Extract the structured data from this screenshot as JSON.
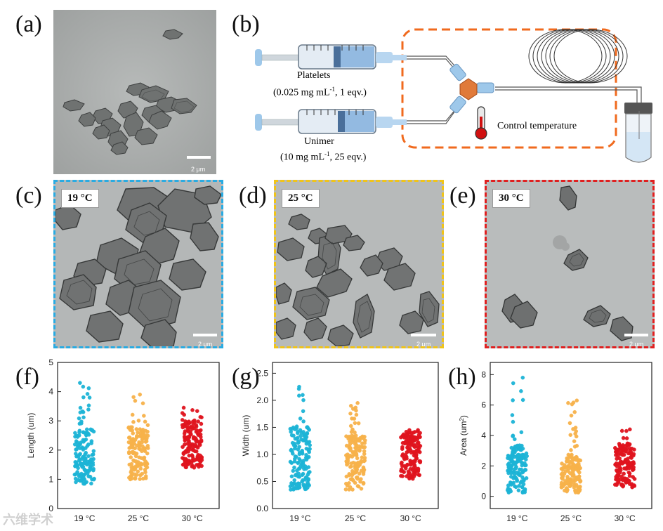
{
  "labels": {
    "a": "(a)",
    "b": "(b)",
    "c": "(c)",
    "d": "(d)",
    "e": "(e)",
    "f": "(f)",
    "g": "(g)",
    "h": "(h)"
  },
  "scale_bars": {
    "a": "2 μm",
    "c": "2 μm",
    "d": "2 μm",
    "e": "2 μm"
  },
  "temperatures": {
    "c": "19 °C",
    "d": "25 °C",
    "e": "30 °C"
  },
  "schematic": {
    "platelets_label": "Platelets",
    "platelets_conc": "(0.025 mg mL",
    "platelets_sup": "-1",
    "platelets_eqv": ", 1 eqv.)",
    "unimer_label": "Unimer",
    "unimer_conc": "(10 mg mL",
    "unimer_sup": "-1",
    "unimer_eqv": ", 25 eqv.)",
    "control_label": "Control temperature"
  },
  "colors": {
    "c_border": "#29abe2",
    "d_border": "#f0c419",
    "e_border": "#e02020",
    "dots_19": "#1cb4d6",
    "dots_25": "#f7b24a",
    "dots_30": "#e0141e",
    "orange_box": "#f06a1e"
  },
  "watermark": "六维学术",
  "chart_data": [
    {
      "type": "scatter",
      "panel": "f",
      "ylabel": "Length (um)",
      "ylim": [
        0,
        5
      ],
      "yticks": [
        "0",
        "1",
        "2",
        "3",
        "4",
        "5"
      ],
      "categories": [
        "19 °C",
        "25 °C",
        "30 °C"
      ],
      "series": [
        {
          "category": "19 °C",
          "min": 0.85,
          "max": 4.3,
          "median": 1.8,
          "n": 150
        },
        {
          "category": "25 °C",
          "min": 1.0,
          "max": 3.9,
          "median": 1.9,
          "n": 150
        },
        {
          "category": "30 °C",
          "min": 1.4,
          "max": 3.45,
          "median": 2.2,
          "n": 150
        }
      ]
    },
    {
      "type": "scatter",
      "panel": "g",
      "ylabel": "Width (um)",
      "ylim": [
        0,
        2.7
      ],
      "yticks": [
        "0.0",
        "0.5",
        "1.0",
        "1.5",
        "2.0",
        "2.5"
      ],
      "categories": [
        "19 °C",
        "25 °C",
        "30 °C"
      ],
      "series": [
        {
          "category": "19 °C",
          "min": 0.35,
          "max": 2.25,
          "median": 0.95,
          "n": 150
        },
        {
          "category": "25 °C",
          "min": 0.35,
          "max": 1.95,
          "median": 0.85,
          "n": 150
        },
        {
          "category": "30 °C",
          "min": 0.55,
          "max": 1.45,
          "median": 1.0,
          "n": 150
        }
      ]
    },
    {
      "type": "scatter",
      "panel": "h",
      "ylabel": "Area (um",
      "ylabel_sup": "2",
      "ylabel_end": ")",
      "ylim": [
        -0.8,
        8.8
      ],
      "yticks": [
        "0",
        "2",
        "4",
        "6",
        "8"
      ],
      "categories": [
        "19 °C",
        "25 °C",
        "30 °C"
      ],
      "series": [
        {
          "category": "19 °C",
          "min": 0.25,
          "max": 7.8,
          "median": 1.8,
          "n": 150
        },
        {
          "category": "25 °C",
          "min": 0.25,
          "max": 6.3,
          "median": 1.5,
          "n": 150
        },
        {
          "category": "30 °C",
          "min": 0.6,
          "max": 4.4,
          "median": 2.0,
          "n": 150
        }
      ]
    }
  ]
}
